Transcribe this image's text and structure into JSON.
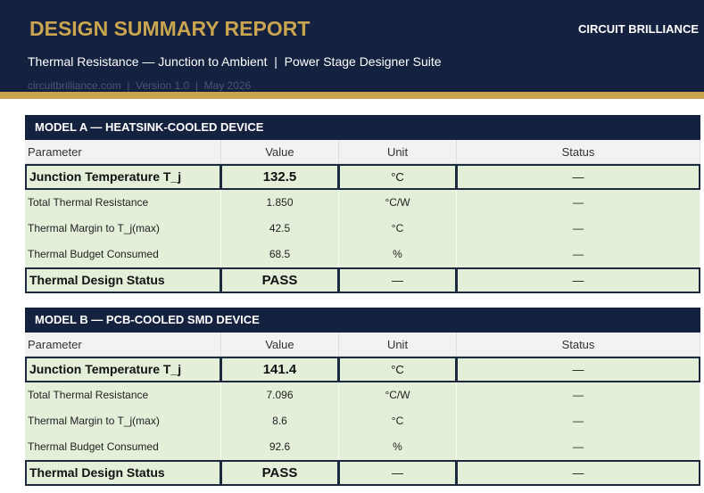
{
  "header": {
    "title": "DESIGN SUMMARY REPORT",
    "brand": "CIRCUIT BRILLIANCE",
    "subtitle": "Thermal Resistance — Junction to Ambient  |  Power Stage Designer Suite",
    "meta": "circuitbrilliance.com  |  Version 1.0  |  May 2026"
  },
  "sections": [
    {
      "title": "MODEL A — HEATSINK-COOLED DEVICE",
      "columns": [
        "Parameter",
        "Value",
        "Unit",
        "Status"
      ],
      "rows": [
        [
          "Junction Temperature T_j",
          "132.5",
          "°C",
          "—"
        ],
        [
          "Total Thermal Resistance",
          "1.850",
          "°C/W",
          "—"
        ],
        [
          "Thermal Margin to T_j(max)",
          "42.5",
          "°C",
          "—"
        ],
        [
          "Thermal Budget Consumed",
          "68.5",
          "%",
          "—"
        ],
        [
          "Thermal Design Status",
          "PASS",
          "—",
          "—"
        ]
      ]
    },
    {
      "title": "MODEL B — PCB-COOLED SMD DEVICE",
      "columns": [
        "Parameter",
        "Value",
        "Unit",
        "Status"
      ],
      "rows": [
        [
          "Junction Temperature T_j",
          "141.4",
          "°C",
          "—"
        ],
        [
          "Total Thermal Resistance",
          "7.096",
          "°C/W",
          "—"
        ],
        [
          "Thermal Margin to T_j(max)",
          "8.6",
          "°C",
          "—"
        ],
        [
          "Thermal Budget Consumed",
          "92.6",
          "%",
          "—"
        ],
        [
          "Thermal Design Status",
          "PASS",
          "—",
          "—"
        ]
      ]
    }
  ]
}
